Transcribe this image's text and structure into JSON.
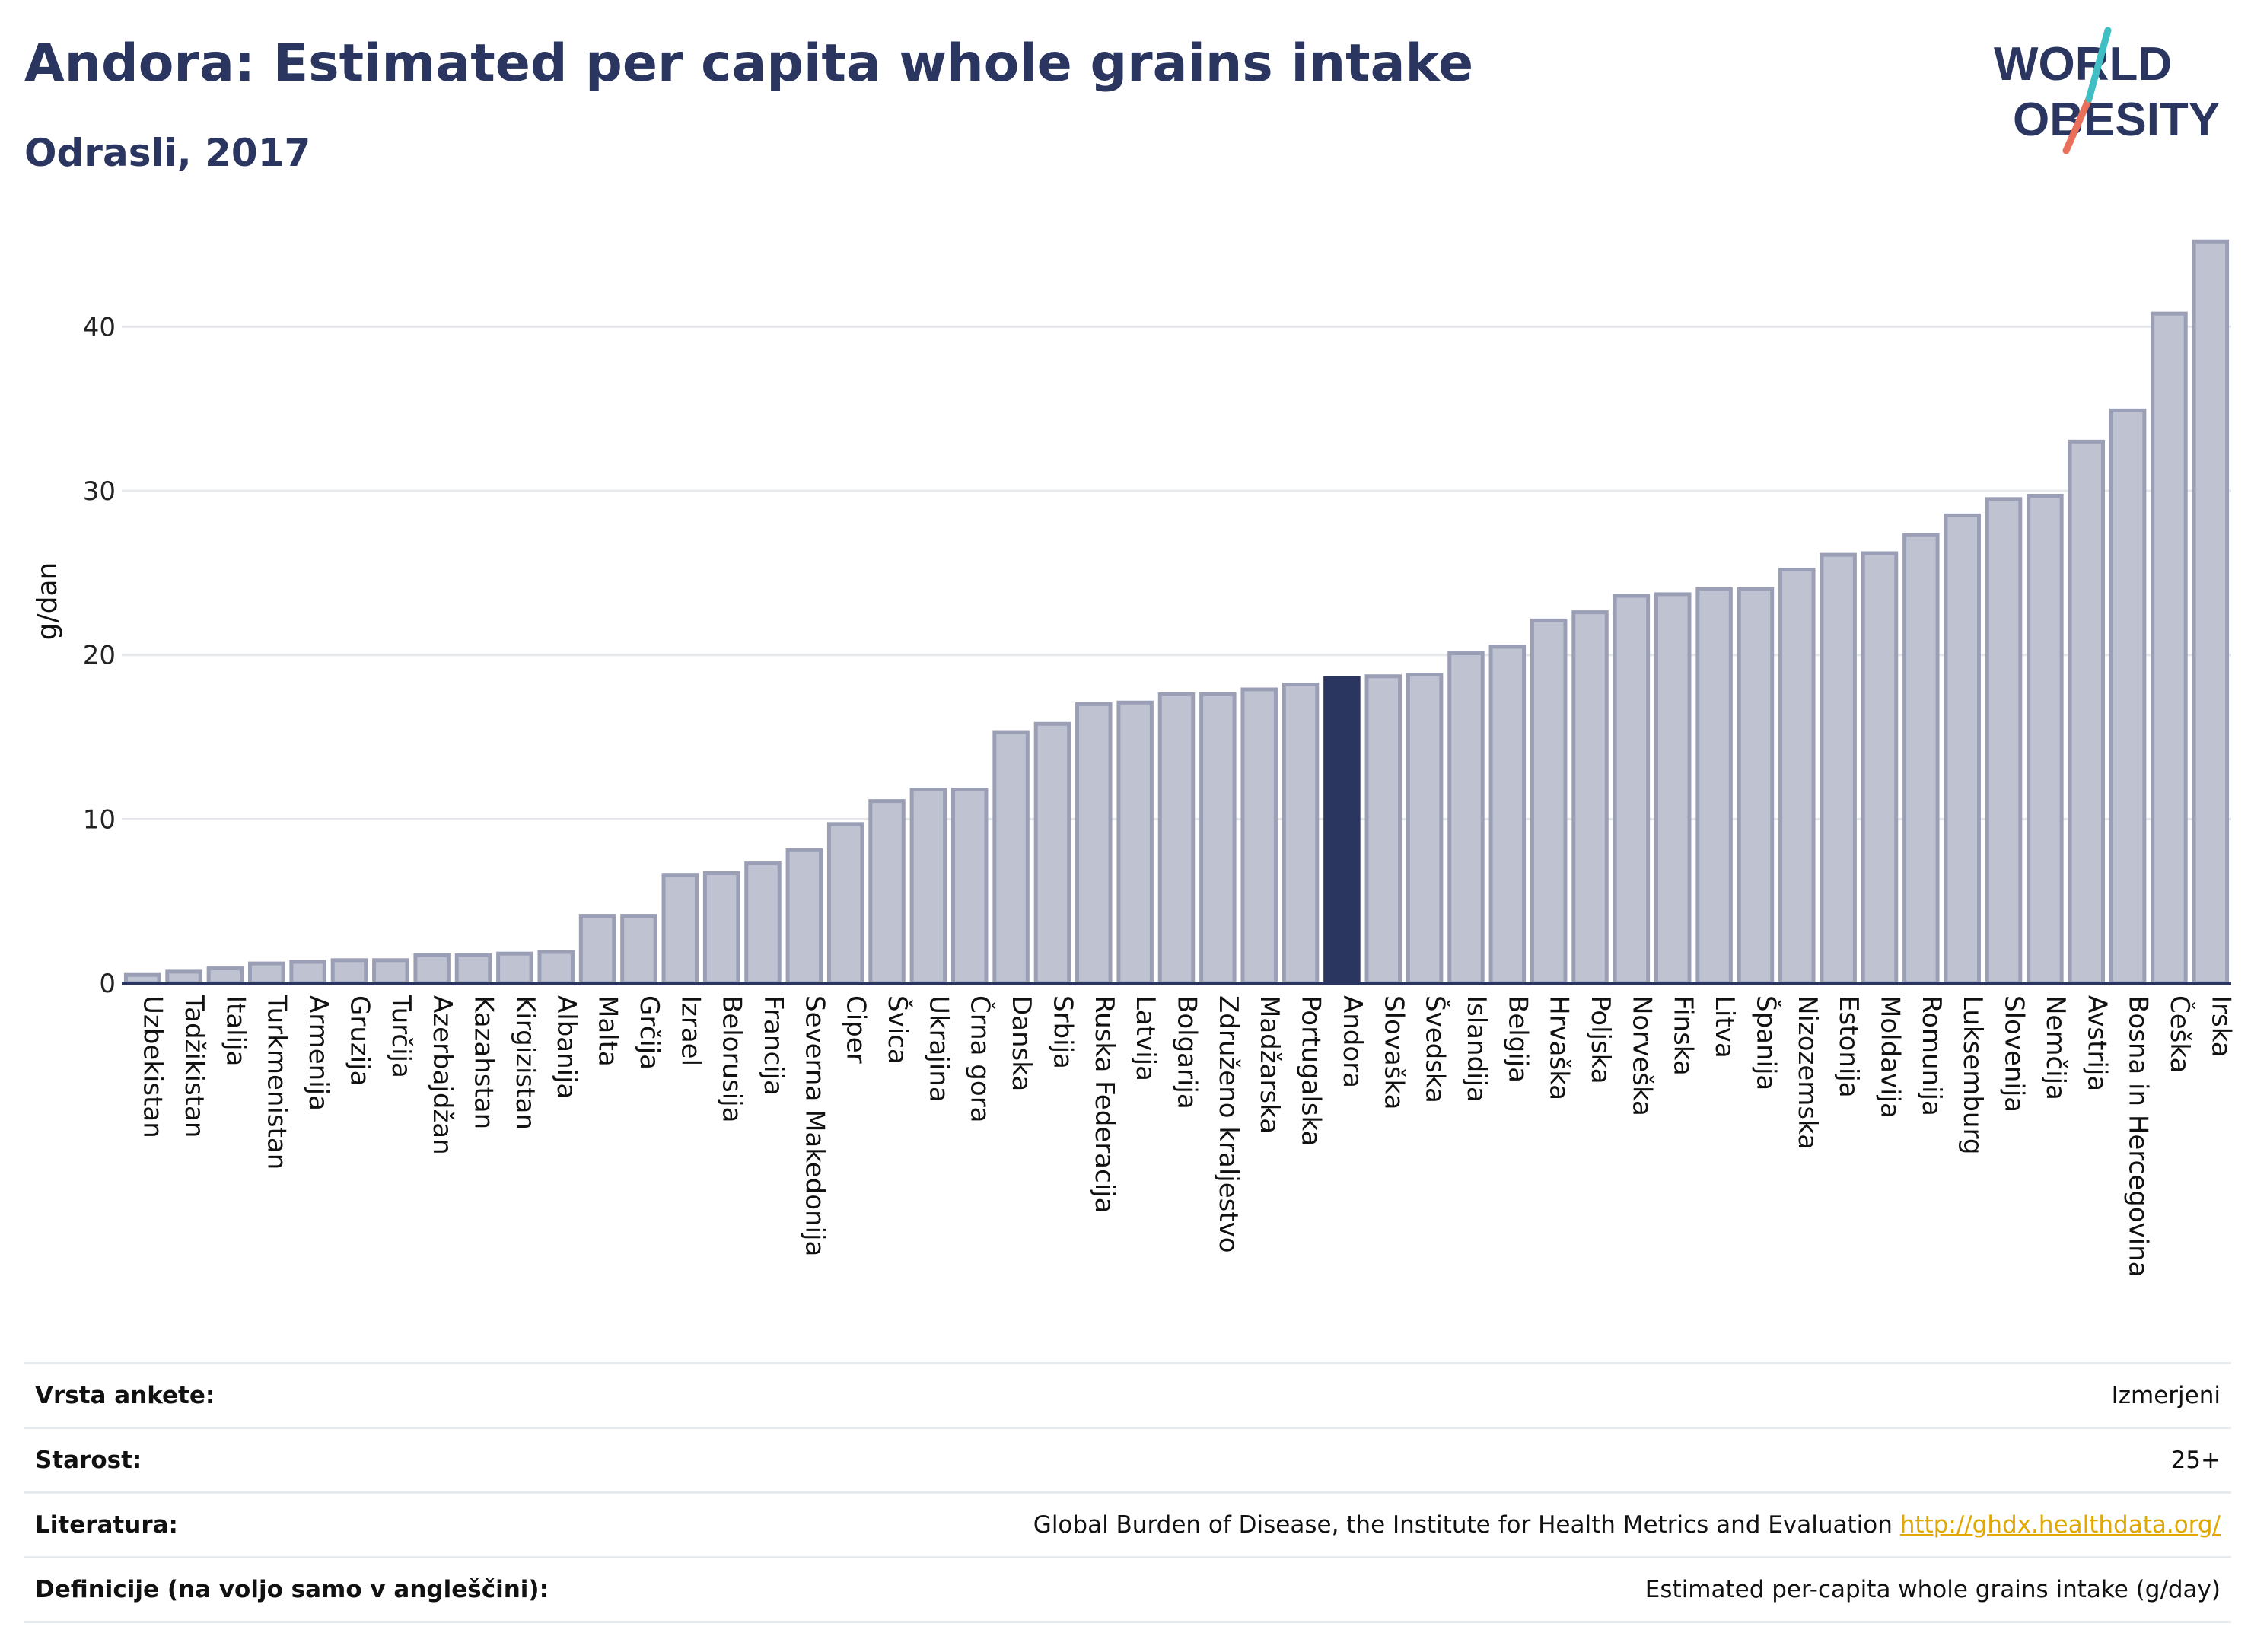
{
  "header": {
    "title": "Andora: Estimated per capita whole grains intake",
    "subtitle": "Odrasli, 2017"
  },
  "logo": {
    "line1": "WORLD",
    "line2": "OBESITY"
  },
  "chart_data": {
    "type": "bar",
    "ylabel": "g/dan",
    "ylim": [
      0,
      46
    ],
    "yticks": [
      0,
      10,
      20,
      30,
      40
    ],
    "grid": true,
    "highlight": "Andora",
    "colors": {
      "bar": "#bfc3d1",
      "bar_border": "#9a9fb6",
      "highlight": "#2a3560",
      "grid": "#e6e8ec",
      "axis": "#2a3560"
    },
    "categories": [
      "Uzbekistan",
      "Tadžikistan",
      "Italija",
      "Turkmenistan",
      "Armenija",
      "Gruzija",
      "Turčija",
      "Azerbajdžan",
      "Kazahstan",
      "Kirgizistan",
      "Albanija",
      "Malta",
      "Grčija",
      "Izrael",
      "Belorusija",
      "Francija",
      "Severna Makedonija",
      "Ciper",
      "Švica",
      "Ukrajina",
      "Črna gora",
      "Danska",
      "Srbija",
      "Ruska Federacija",
      "Latvija",
      "Bolgarija",
      "Združeno kraljestvo",
      "Madžarska",
      "Portugalska",
      "Andora",
      "Slovaška",
      "Švedska",
      "Islandija",
      "Belgija",
      "Hrvaška",
      "Poljska",
      "Norveška",
      "Finska",
      "Litva",
      "Španija",
      "Nizozemska",
      "Estonija",
      "Moldavija",
      "Romunija",
      "Luksemburg",
      "Slovenija",
      "Nemčija",
      "Avstrija",
      "Bosna in Hercegovina",
      "Češka",
      "Irska"
    ],
    "values": [
      0.5,
      0.7,
      0.9,
      1.2,
      1.3,
      1.4,
      1.4,
      1.7,
      1.7,
      1.8,
      1.9,
      4.1,
      4.1,
      6.6,
      6.7,
      7.3,
      8.1,
      9.7,
      11.1,
      11.8,
      11.8,
      15.3,
      15.8,
      17.0,
      17.1,
      17.6,
      17.6,
      17.9,
      18.2,
      18.6,
      18.7,
      18.8,
      20.1,
      20.5,
      22.1,
      22.6,
      23.6,
      23.7,
      24.0,
      24.0,
      25.2,
      26.1,
      26.2,
      27.3,
      28.5,
      29.5,
      29.7,
      33.0,
      34.9,
      40.8,
      45.2
    ]
  },
  "meta": {
    "rows": [
      {
        "label": "Vrsta ankete:",
        "value": "Izmerjeni"
      },
      {
        "label": "Starost:",
        "value": "25+"
      },
      {
        "label": "Literatura:",
        "value": "Global Burden of Disease, the Institute for Health Metrics and Evaluation",
        "link": "http://ghdx.healthdata.org/"
      },
      {
        "label": "Definicije (na voljo samo v angleščini):",
        "value": "Estimated per-capita whole grains intake (g/day)"
      }
    ]
  }
}
